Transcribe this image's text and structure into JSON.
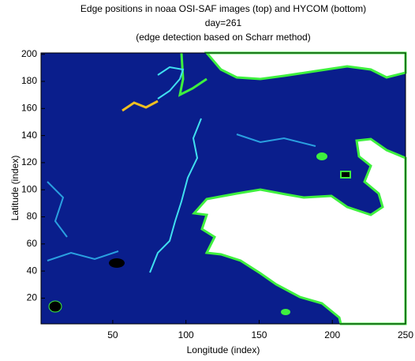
{
  "chart_data": {
    "type": "image",
    "title": "Edge positions in noaa OSI-SAF images (top) and HYCOM (bottom)",
    "subtitle": "day=261",
    "note": "(edge detection based on Scharr method)",
    "x_label": "Longitude (index)",
    "y_label": "Latitude (index)",
    "xlim": [
      1,
      250
    ],
    "xticks": [
      50,
      100,
      150,
      200,
      250
    ],
    "ylim": [
      1,
      201
    ],
    "yticks": [
      20,
      40,
      60,
      80,
      100,
      120,
      140,
      160,
      180,
      200
    ]
  }
}
